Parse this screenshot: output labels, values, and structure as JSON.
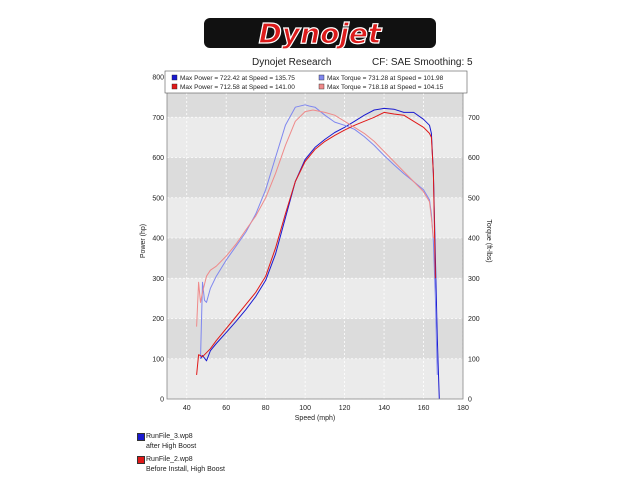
{
  "logo": {
    "text": "Dynojet"
  },
  "header": {
    "center": "Dynojet Research",
    "right": "CF: SAE Smoothing: 5"
  },
  "colors": {
    "run3_power": "#1a1ad0",
    "run3_torque": "#7f87ef",
    "run2_power": "#e01818",
    "run2_torque": "#ef8a8a",
    "plot_bg": "#ebebeb",
    "logo_red": "#dc1b1b"
  },
  "legend": {
    "entries": [
      {
        "text": "Max Power = 722.42 at Speed = 135.75",
        "color": "#1a1ad0"
      },
      {
        "text": "Max Torque = 731.28 at Speed = 101.98",
        "color": "#7f87ef"
      },
      {
        "text": "Max Power = 712.58 at Speed = 141.00",
        "color": "#e01818"
      },
      {
        "text": "Max Torque = 718.18 at Speed = 104.15",
        "color": "#ef8a8a"
      }
    ]
  },
  "files": [
    {
      "name": "RunFile_3.wp8",
      "note": "after High Boost",
      "color": "#1a1ad0"
    },
    {
      "name": "RunFile_2.wp8",
      "note": "Before Install, High Boost",
      "color": "#e01818"
    }
  ],
  "chart_data": {
    "type": "line",
    "xlabel": "Speed (mph)",
    "ylabel": "Power (hp)",
    "y2label": "Torque (ft-lbs)",
    "xlim": [
      30,
      180
    ],
    "ylim": [
      0,
      800
    ],
    "y2lim": [
      0,
      800
    ],
    "xticks": [
      40,
      60,
      80,
      100,
      120,
      140,
      160,
      180
    ],
    "yticks": [
      0,
      100,
      200,
      300,
      400,
      500,
      600,
      700,
      800
    ],
    "y2ticks": [
      0,
      100,
      200,
      300,
      400,
      500,
      600,
      700
    ],
    "grid": true,
    "series": [
      {
        "name": "RunFile_3.wp8 Power",
        "color": "#1a1ad0",
        "x": [
          47,
          48,
          50,
          52,
          55,
          60,
          65,
          70,
          75,
          80,
          85,
          90,
          95,
          100,
          105,
          110,
          115,
          120,
          125,
          130,
          135,
          140,
          145,
          150,
          155,
          160,
          163,
          164,
          165,
          166,
          167,
          168
        ],
        "y": [
          100,
          108,
          95,
          120,
          138,
          165,
          193,
          222,
          255,
          295,
          360,
          450,
          540,
          595,
          625,
          645,
          662,
          675,
          690,
          705,
          718,
          722,
          720,
          712,
          712,
          695,
          680,
          660,
          560,
          350,
          150,
          0
        ]
      },
      {
        "name": "RunFile_3.wp8 Torque",
        "color": "#7f87ef",
        "x": [
          47,
          48,
          49,
          50,
          52,
          55,
          60,
          65,
          70,
          75,
          80,
          85,
          90,
          95,
          100,
          102,
          105,
          110,
          115,
          120,
          125,
          130,
          135,
          140,
          145,
          150,
          155,
          160,
          163,
          164,
          165,
          166,
          167
        ],
        "y": [
          100,
          290,
          245,
          240,
          275,
          305,
          345,
          380,
          415,
          460,
          520,
          600,
          680,
          725,
          731,
          728,
          725,
          705,
          688,
          680,
          670,
          652,
          630,
          605,
          582,
          560,
          540,
          520,
          495,
          460,
          390,
          250,
          60
        ]
      },
      {
        "name": "RunFile_2.wp8 Power",
        "color": "#e01818",
        "x": [
          45,
          46,
          48,
          50,
          52,
          55,
          60,
          65,
          70,
          75,
          80,
          85,
          90,
          95,
          100,
          105,
          110,
          115,
          120,
          125,
          130,
          135,
          140,
          145,
          150,
          155,
          160,
          163,
          164,
          165,
          166
        ],
        "y": [
          60,
          110,
          105,
          115,
          125,
          145,
          175,
          205,
          235,
          265,
          305,
          375,
          460,
          540,
          590,
          620,
          640,
          655,
          668,
          680,
          690,
          700,
          712,
          708,
          705,
          690,
          675,
          660,
          650,
          560,
          300
        ]
      },
      {
        "name": "RunFile_2.wp8 Torque",
        "color": "#ef8a8a",
        "x": [
          45,
          46,
          47,
          48,
          50,
          52,
          55,
          60,
          65,
          70,
          75,
          80,
          85,
          90,
          95,
          100,
          104,
          110,
          115,
          120,
          125,
          130,
          135,
          140,
          145,
          150,
          155,
          160,
          163,
          164,
          165
        ],
        "y": [
          180,
          290,
          240,
          265,
          305,
          320,
          330,
          355,
          385,
          420,
          455,
          500,
          560,
          630,
          690,
          714,
          718,
          712,
          705,
          690,
          675,
          660,
          640,
          615,
          590,
          565,
          540,
          515,
          490,
          450,
          400
        ]
      }
    ]
  }
}
